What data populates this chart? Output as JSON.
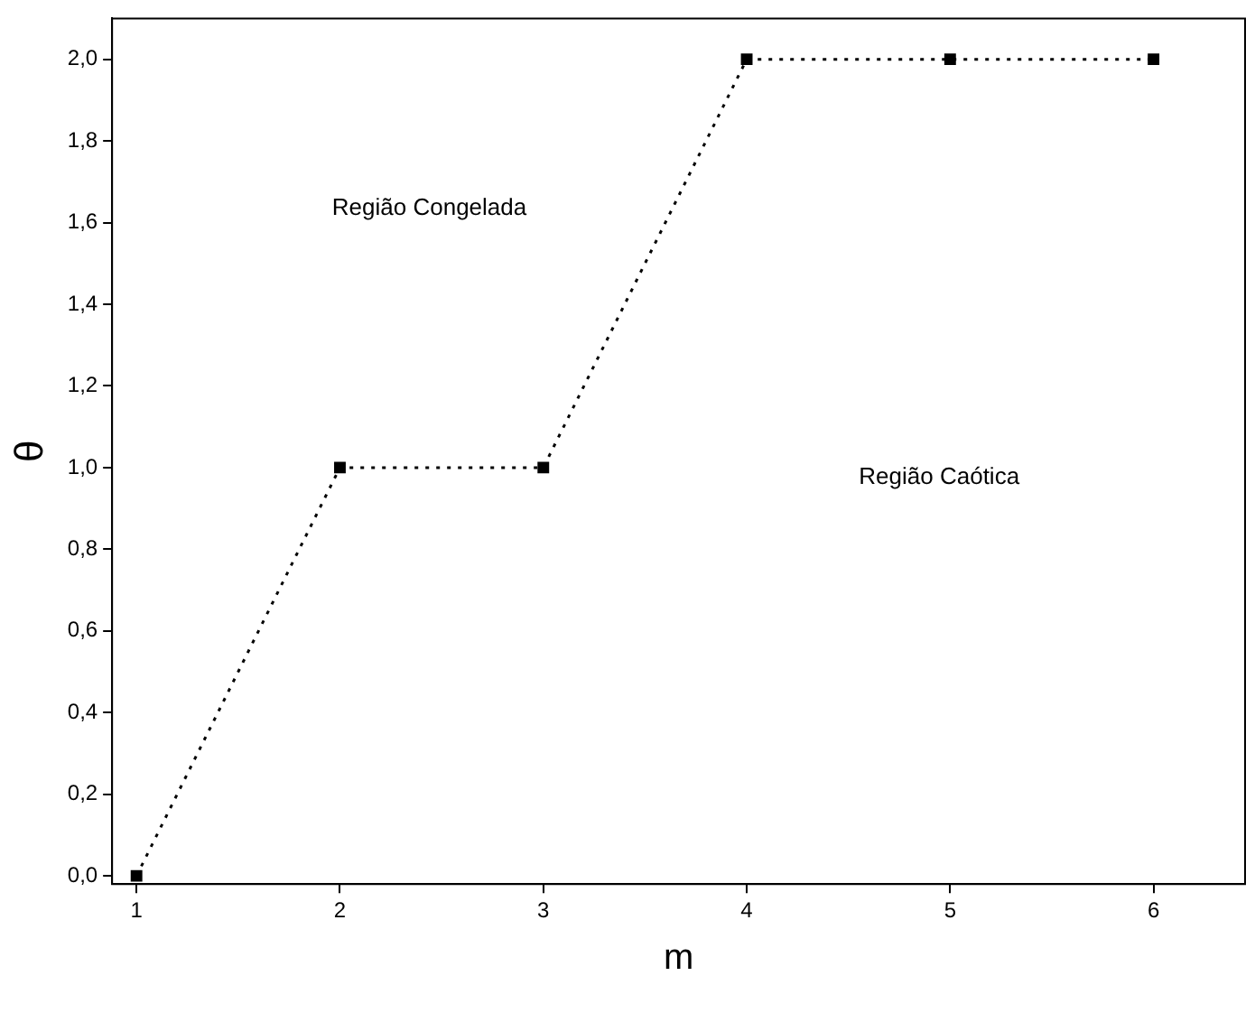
{
  "chart_data": {
    "type": "line",
    "xlabel": "m",
    "ylabel": "θ",
    "x": [
      1,
      2,
      3,
      4,
      5,
      6
    ],
    "series": [
      {
        "color": "#000000",
        "values": [
          0,
          1,
          1,
          2,
          2,
          2
        ]
      }
    ],
    "xlim": [
      0.88,
      6.45
    ],
    "xticks": [
      1,
      2,
      3,
      4,
      5,
      6
    ],
    "ylim": [
      -0.02,
      2.1
    ],
    "yticks": [
      {
        "value": 0,
        "label": "0,0"
      },
      {
        "value": 0.2,
        "label": "0,2"
      },
      {
        "value": 0.4,
        "label": "0,4"
      },
      {
        "value": 0.6,
        "label": "0,6"
      },
      {
        "value": 0.8,
        "label": "0,8"
      },
      {
        "value": 1,
        "label": "1,0"
      },
      {
        "value": 1.2,
        "label": "1,2"
      },
      {
        "value": 1.4,
        "label": "1,4"
      },
      {
        "value": 1.6,
        "label": "1,6"
      },
      {
        "value": 1.8,
        "label": "1,8"
      },
      {
        "value": 2,
        "label": "2,0"
      }
    ],
    "annotations": [
      "Região Congelada",
      "Região Caótica"
    ],
    "marker": "square",
    "line_style": "dotted",
    "grid": false,
    "legend": false
  }
}
